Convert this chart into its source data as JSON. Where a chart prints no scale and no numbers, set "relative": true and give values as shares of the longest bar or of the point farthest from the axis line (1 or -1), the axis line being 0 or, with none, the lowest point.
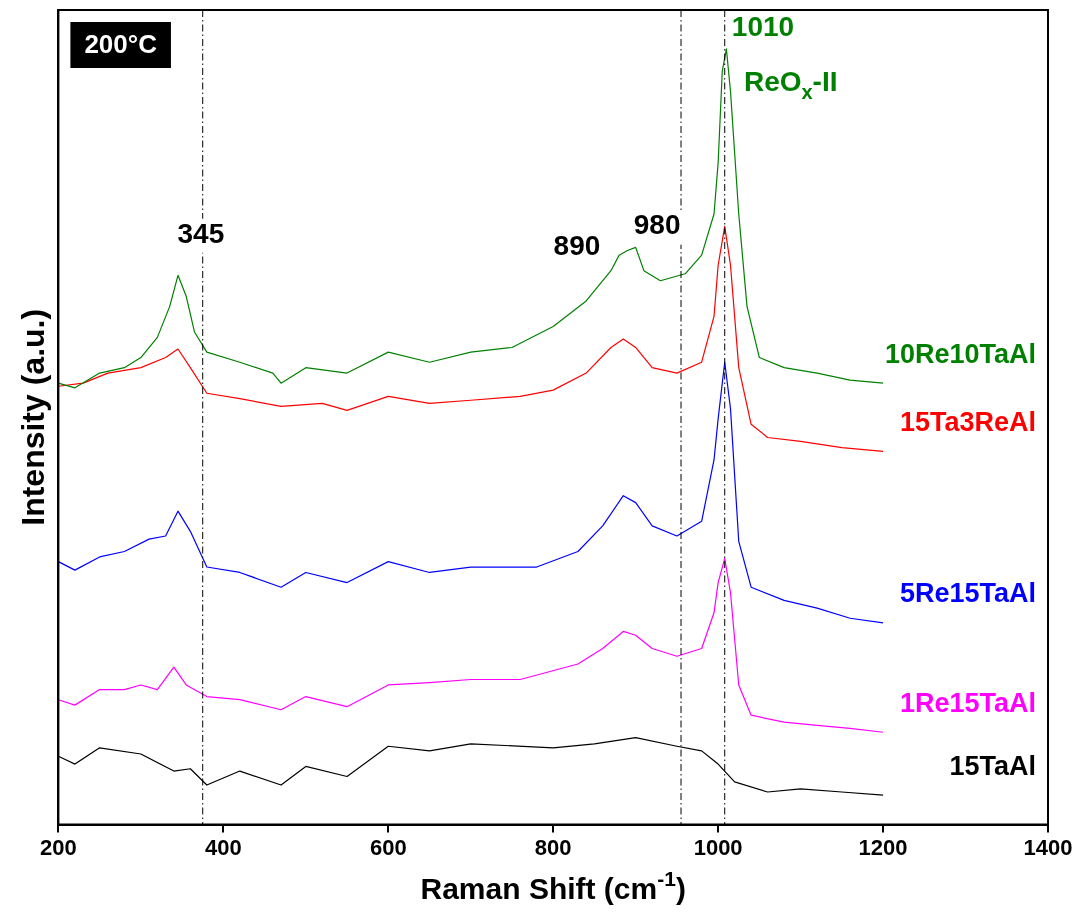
{
  "chart_data": {
    "type": "line",
    "relative": true,
    "xlabel": "Raman Shift (cm$^{-1}$)",
    "ylabel": "Intensity (a.u.)",
    "xlim": [
      200,
      1400
    ],
    "xticks": [
      200,
      400,
      600,
      800,
      1000,
      1200,
      1400
    ],
    "legend": false,
    "marker": "none",
    "line_style": "solid",
    "series": [
      {
        "name": "10Re10TaAl",
        "color": "#008000",
        "x": [
          200,
          220,
          250,
          280,
          300,
          320,
          335,
          345,
          355,
          365,
          380,
          420,
          460,
          470,
          500,
          550,
          600,
          650,
          700,
          750,
          800,
          840,
          870,
          880,
          890,
          900,
          910,
          930,
          960,
          980,
          995,
          1000,
          1005,
          1010,
          1015,
          1025,
          1035,
          1050,
          1080,
          1120,
          1160,
          1200
        ],
        "values": [
          0.569,
          0.563,
          0.582,
          0.589,
          0.602,
          0.628,
          0.668,
          0.708,
          0.681,
          0.635,
          0.609,
          0.596,
          0.582,
          0.569,
          0.589,
          0.582,
          0.609,
          0.596,
          0.609,
          0.615,
          0.642,
          0.675,
          0.714,
          0.734,
          0.74,
          0.744,
          0.714,
          0.701,
          0.71,
          0.734,
          0.787,
          0.853,
          0.971,
          1,
          0.945,
          0.787,
          0.668,
          0.602,
          0.589,
          0.582,
          0.573,
          0.569
        ]
      },
      {
        "name": "15Ta3ReAl",
        "color": "#ff0000",
        "x": [
          200,
          230,
          260,
          300,
          330,
          345,
          360,
          380,
          420,
          470,
          520,
          550,
          600,
          650,
          700,
          760,
          800,
          840,
          870,
          885,
          900,
          920,
          950,
          980,
          995,
          1000,
          1008,
          1015,
          1025,
          1040,
          1060,
          1100,
          1150,
          1200
        ],
        "values": [
          0.565,
          0.569,
          0.582,
          0.589,
          0.602,
          0.613,
          0.589,
          0.556,
          0.549,
          0.539,
          0.543,
          0.534,
          0.552,
          0.543,
          0.547,
          0.552,
          0.56,
          0.582,
          0.615,
          0.626,
          0.615,
          0.589,
          0.582,
          0.596,
          0.655,
          0.721,
          0.771,
          0.721,
          0.589,
          0.516,
          0.499,
          0.494,
          0.486,
          0.481
        ]
      },
      {
        "name": "5Re15TaAl",
        "color": "#0000ff",
        "x": [
          200,
          220,
          250,
          280,
          310,
          330,
          345,
          360,
          380,
          420,
          470,
          500,
          550,
          600,
          650,
          700,
          780,
          830,
          860,
          885,
          900,
          920,
          950,
          980,
          995,
          1000,
          1008,
          1015,
          1025,
          1040,
          1080,
          1120,
          1160,
          1200
        ],
        "values": [
          0.339,
          0.328,
          0.345,
          0.352,
          0.368,
          0.372,
          0.404,
          0.378,
          0.332,
          0.325,
          0.306,
          0.325,
          0.312,
          0.339,
          0.325,
          0.332,
          0.332,
          0.352,
          0.385,
          0.424,
          0.415,
          0.385,
          0.372,
          0.391,
          0.47,
          0.523,
          0.596,
          0.536,
          0.365,
          0.306,
          0.289,
          0.279,
          0.266,
          0.26
        ]
      },
      {
        "name": "1Re15TaAl",
        "color": "#ff00ff",
        "x": [
          200,
          220,
          250,
          280,
          300,
          320,
          340,
          355,
          380,
          420,
          470,
          500,
          550,
          600,
          650,
          700,
          760,
          830,
          860,
          885,
          900,
          920,
          950,
          980,
          995,
          1000,
          1008,
          1015,
          1025,
          1040,
          1080,
          1120,
          1160,
          1200
        ],
        "values": [
          0.161,
          0.154,
          0.174,
          0.174,
          0.18,
          0.174,
          0.203,
          0.18,
          0.165,
          0.161,
          0.148,
          0.165,
          0.152,
          0.18,
          0.183,
          0.187,
          0.187,
          0.207,
          0.227,
          0.249,
          0.244,
          0.227,
          0.217,
          0.227,
          0.273,
          0.312,
          0.343,
          0.299,
          0.18,
          0.141,
          0.132,
          0.128,
          0.124,
          0.119
        ]
      },
      {
        "name": "15TaAl",
        "color": "#000000",
        "x": [
          200,
          220,
          250,
          300,
          340,
          360,
          380,
          420,
          470,
          500,
          550,
          600,
          650,
          700,
          800,
          850,
          900,
          950,
          980,
          1000,
          1020,
          1060,
          1100,
          1150,
          1200
        ],
        "values": [
          0.088,
          0.078,
          0.099,
          0.091,
          0.069,
          0.072,
          0.051,
          0.069,
          0.051,
          0.075,
          0.062,
          0.101,
          0.095,
          0.104,
          0.099,
          0.104,
          0.112,
          0.101,
          0.095,
          0.078,
          0.055,
          0.042,
          0.046,
          0.042,
          0.038
        ]
      }
    ],
    "ref_lines": [
      {
        "axis": "x",
        "value": 375,
        "line_style": "dashed",
        "color": "#000000"
      },
      {
        "axis": "x",
        "value": 955,
        "line_style": "dashed",
        "color": "#000000"
      },
      {
        "axis": "x",
        "value": 1008,
        "line_style": "dashed",
        "color": "#000000"
      }
    ],
    "annotations": [
      "200°C",
      "345",
      "890",
      "980",
      "1010",
      "ReO$_{x}$-II"
    ]
  }
}
